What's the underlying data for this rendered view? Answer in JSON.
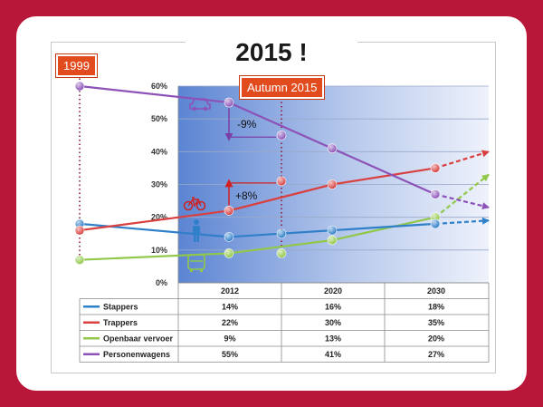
{
  "title": "2015 !",
  "callouts": {
    "left": "1999",
    "right": "Autumn 2015"
  },
  "annotations": {
    "car_change": "-9%",
    "bike_change": "+8%"
  },
  "colors": {
    "background": "#b8173a",
    "callout": "#e24b1e",
    "stappers": "#2f7fc9",
    "trappers": "#d94040",
    "openbaar": "#92c84a",
    "personenwagens": "#8c52b8"
  },
  "icons": [
    "car-icon",
    "bicycle-icon",
    "pedestrian-icon",
    "bus-icon"
  ],
  "chart_data": {
    "type": "line",
    "categories": [
      "2012",
      "2020",
      "2030"
    ],
    "ylim": [
      0,
      60
    ],
    "yticks": [
      "0%",
      "10%",
      "20%",
      "30%",
      "40%",
      "50%",
      "60%"
    ],
    "series": [
      {
        "name": "Stappers",
        "values": [
          14,
          16,
          18
        ],
        "labels": [
          "14%",
          "16%",
          "18%"
        ],
        "y1999": 18,
        "y2015": 15
      },
      {
        "name": "Trappers",
        "values": [
          22,
          30,
          35
        ],
        "labels": [
          "22%",
          "30%",
          "35%"
        ],
        "y1999": 16,
        "y2015": 31
      },
      {
        "name": "Openbaar vervoer",
        "values": [
          9,
          13,
          20
        ],
        "labels": [
          "9%",
          "13%",
          "20%"
        ],
        "y1999": 7,
        "y2015": 9
      },
      {
        "name": "Personenwagens",
        "values": [
          55,
          41,
          27
        ],
        "labels": [
          "55%",
          "41%",
          "27%"
        ],
        "y1999": 60,
        "y2015": 45
      }
    ],
    "projections": {
      "Stappers": 19,
      "Trappers": 40,
      "Openbaar vervoer": 33,
      "Personenwagens": 23
    },
    "legend": "table-below"
  }
}
